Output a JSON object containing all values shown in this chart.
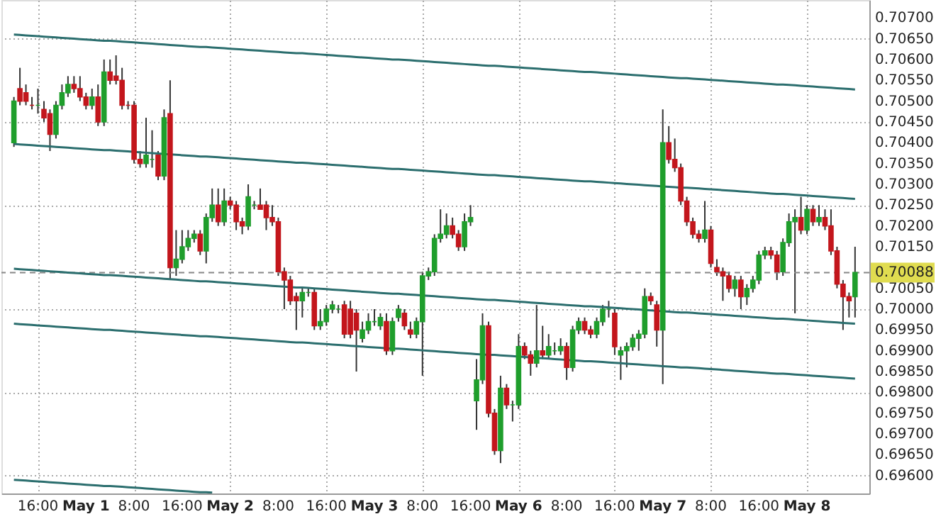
{
  "chart_data": {
    "type": "candlestick",
    "categories": [
      null,
      null,
      null,
      null,
      "16:00",
      null,
      null,
      null,
      null,
      null,
      null,
      null,
      "May 1",
      null,
      null,
      null,
      null,
      null,
      null,
      null,
      "8:00",
      null,
      null,
      null,
      null,
      null,
      null,
      null,
      "16:00",
      null,
      null,
      null,
      null,
      null,
      null,
      null,
      "May 2",
      null,
      null,
      null,
      null,
      null,
      null,
      null,
      "8:00",
      null,
      null,
      null,
      null,
      null,
      null,
      null,
      "16:00",
      null,
      null,
      null,
      null,
      null,
      null,
      null,
      "May 3",
      null,
      null,
      null,
      null,
      null,
      null,
      null,
      "8:00",
      null,
      null,
      null,
      null,
      null,
      null,
      null,
      "16:00",
      null,
      null,
      null,
      null,
      null,
      null,
      null,
      "May 6",
      null,
      null,
      null,
      null,
      null,
      null,
      null,
      "8:00",
      null,
      null,
      null,
      null,
      null,
      null,
      null,
      "16:00",
      null,
      null,
      null,
      null,
      null,
      null,
      null,
      "May 7",
      null,
      null,
      null,
      null,
      null,
      null,
      null,
      "8:00",
      null,
      null,
      null,
      null,
      null,
      null,
      null,
      "16:00",
      null,
      null,
      null,
      null,
      null,
      null,
      null,
      "May 8",
      null,
      null,
      null,
      null,
      null,
      null,
      null,
      null
    ],
    "ohlc": [
      [
        0.704,
        0.7051,
        0.7039,
        0.705
      ],
      [
        0.7053,
        0.7058,
        0.7049,
        0.705
      ],
      [
        0.7052,
        0.7054,
        0.7049,
        0.705
      ],
      [
        0.7049,
        0.7051,
        0.7048,
        0.7049
      ],
      [
        0.7049,
        0.7053,
        0.7047,
        0.7049
      ],
      [
        0.7048,
        0.705,
        0.7045,
        0.7046
      ],
      [
        0.7047,
        0.7048,
        0.7038,
        0.7042
      ],
      [
        0.7042,
        0.705,
        0.7041,
        0.7049
      ],
      [
        0.7049,
        0.7054,
        0.7048,
        0.7052
      ],
      [
        0.7052,
        0.7056,
        0.7051,
        0.7054
      ],
      [
        0.7054,
        0.7056,
        0.7052,
        0.7053
      ],
      [
        0.7053,
        0.7056,
        0.705,
        0.7051
      ],
      [
        0.7051,
        0.7052,
        0.7048,
        0.7049
      ],
      [
        0.7049,
        0.7053,
        0.7048,
        0.7051
      ],
      [
        0.7051,
        0.7054,
        0.7044,
        0.7045
      ],
      [
        0.7045,
        0.706,
        0.7044,
        0.7057
      ],
      [
        0.7057,
        0.706,
        0.7054,
        0.7055
      ],
      [
        0.7056,
        0.7061,
        0.7054,
        0.7055
      ],
      [
        0.7055,
        0.7058,
        0.7048,
        0.7049
      ],
      [
        0.7049,
        0.705,
        0.7048,
        0.7049
      ],
      [
        0.7049,
        0.705,
        0.7035,
        0.7036
      ],
      [
        0.7036,
        0.7038,
        0.7034,
        0.7035
      ],
      [
        0.7035,
        0.7046,
        0.7034,
        0.7037
      ],
      [
        0.7036,
        0.7043,
        0.7034,
        0.7036
      ],
      [
        0.7037,
        0.7038,
        0.7031,
        0.7032
      ],
      [
        0.7032,
        0.7048,
        0.7031,
        0.7046
      ],
      [
        0.7047,
        0.7055,
        0.7007,
        0.701
      ],
      [
        0.701,
        0.7019,
        0.7008,
        0.7012
      ],
      [
        0.7012,
        0.7019,
        0.7011,
        0.7015
      ],
      [
        0.7015,
        0.7019,
        0.7014,
        0.7017
      ],
      [
        0.7017,
        0.7019,
        0.7016,
        0.7018
      ],
      [
        0.7018,
        0.7019,
        0.7013,
        0.7014
      ],
      [
        0.7014,
        0.7023,
        0.7011,
        0.7022
      ],
      [
        0.7022,
        0.7029,
        0.7021,
        0.7025
      ],
      [
        0.7025,
        0.7029,
        0.702,
        0.7021
      ],
      [
        0.7021,
        0.7029,
        0.702,
        0.7026
      ],
      [
        0.7026,
        0.7027,
        0.7024,
        0.7025
      ],
      [
        0.7025,
        0.7026,
        0.7019,
        0.7021
      ],
      [
        0.7021,
        0.7022,
        0.7018,
        0.702
      ],
      [
        0.702,
        0.703,
        0.7019,
        0.7027
      ],
      [
        0.7025,
        0.7026,
        0.7024,
        0.7025
      ],
      [
        0.7025,
        0.7029,
        0.7024,
        0.7024
      ],
      [
        0.7025,
        0.7026,
        0.7019,
        0.7022
      ],
      [
        0.7022,
        0.7025,
        0.702,
        0.7021
      ],
      [
        0.7021,
        0.7022,
        0.7008,
        0.7009
      ],
      [
        0.7009,
        0.701,
        0.7,
        0.7007
      ],
      [
        0.7007,
        0.7008,
        0.7001,
        0.7002
      ],
      [
        0.7003,
        0.7004,
        0.6995,
        0.7002
      ],
      [
        0.7002,
        0.7005,
        0.6998,
        0.7004
      ],
      [
        0.7004,
        0.7005,
        0.7003,
        0.7004
      ],
      [
        0.7004,
        0.7005,
        0.6995,
        0.6996
      ],
      [
        0.6996,
        0.7,
        0.6995,
        0.6997
      ],
      [
        0.6997,
        0.7001,
        0.6996,
        0.7
      ],
      [
        0.7,
        0.7002,
        0.6999,
        0.7001
      ],
      [
        0.7,
        0.7001,
        0.6999,
        0.7
      ],
      [
        0.7001,
        0.7002,
        0.6993,
        0.6994
      ],
      [
        0.7,
        0.7002,
        0.6993,
        0.6994
      ],
      [
        0.6999,
        0.7,
        0.6985,
        0.6995
      ],
      [
        0.6993,
        0.6997,
        0.6992,
        0.6995
      ],
      [
        0.6995,
        0.6999,
        0.6994,
        0.6997
      ],
      [
        0.6997,
        0.7,
        0.6996,
        0.6997
      ],
      [
        0.6996,
        0.6999,
        0.6995,
        0.6998
      ],
      [
        0.6997,
        0.6999,
        0.6989,
        0.699
      ],
      [
        0.699,
        0.6998,
        0.6989,
        0.6997
      ],
      [
        0.6998,
        0.7001,
        0.6997,
        0.7
      ],
      [
        0.6999,
        0.7,
        0.6995,
        0.6996
      ],
      [
        0.6995,
        0.6997,
        0.6993,
        0.6994
      ],
      [
        0.6994,
        0.6998,
        0.6993,
        0.6997
      ],
      [
        0.6997,
        0.7009,
        0.6984,
        0.7008
      ],
      [
        0.7008,
        0.701,
        0.7007,
        0.7009
      ],
      [
        0.7009,
        0.7018,
        0.7008,
        0.7017
      ],
      [
        0.7017,
        0.7024,
        0.7016,
        0.7018
      ],
      [
        0.7018,
        0.7023,
        0.7017,
        0.702
      ],
      [
        0.702,
        0.7022,
        0.7017,
        0.7018
      ],
      [
        0.7018,
        0.7019,
        0.7014,
        0.7015
      ],
      [
        0.7015,
        0.7023,
        0.7014,
        0.7021
      ],
      [
        0.7021,
        0.7025,
        0.702,
        0.7022
      ],
      [
        0.6978,
        0.6988,
        0.6971,
        0.6983
      ],
      [
        0.6983,
        0.6999,
        0.6982,
        0.6996
      ],
      [
        0.6996,
        0.6997,
        0.6974,
        0.6975
      ],
      [
        0.6975,
        0.6976,
        0.6965,
        0.6966
      ],
      [
        0.6966,
        0.6984,
        0.6963,
        0.6981
      ],
      [
        0.6981,
        0.6982,
        0.6976,
        0.6977
      ],
      [
        0.6977,
        0.6978,
        0.6973,
        0.6977
      ],
      [
        0.6977,
        0.6994,
        0.6976,
        0.6991
      ],
      [
        0.6991,
        0.6992,
        0.6988,
        0.6989
      ],
      [
        0.6989,
        0.699,
        0.6984,
        0.6987
      ],
      [
        0.6987,
        0.7001,
        0.6986,
        0.699
      ],
      [
        0.699,
        0.6996,
        0.6988,
        0.6989
      ],
      [
        0.6989,
        0.6994,
        0.6988,
        0.6991
      ],
      [
        0.699,
        0.6992,
        0.6989,
        0.699
      ],
      [
        0.699,
        0.6993,
        0.6989,
        0.6991
      ],
      [
        0.6991,
        0.6992,
        0.6983,
        0.6986
      ],
      [
        0.6986,
        0.6996,
        0.6985,
        0.6995
      ],
      [
        0.6995,
        0.6998,
        0.6994,
        0.6997
      ],
      [
        0.6997,
        0.6998,
        0.6994,
        0.6995
      ],
      [
        0.6995,
        0.6996,
        0.6993,
        0.6994
      ],
      [
        0.6994,
        0.6998,
        0.6993,
        0.6997
      ],
      [
        0.6997,
        0.7001,
        0.6996,
        0.7
      ],
      [
        0.7,
        0.7002,
        0.6998,
        0.7
      ],
      [
        0.6999,
        0.7,
        0.6989,
        0.6991
      ],
      [
        0.6989,
        0.6991,
        0.6983,
        0.699
      ],
      [
        0.699,
        0.6992,
        0.6986,
        0.6991
      ],
      [
        0.6991,
        0.6994,
        0.699,
        0.6993
      ],
      [
        0.6993,
        0.6995,
        0.699,
        0.6994
      ],
      [
        0.6994,
        0.7005,
        0.6993,
        0.7003
      ],
      [
        0.7003,
        0.7004,
        0.7001,
        0.7002
      ],
      [
        0.7001,
        0.7002,
        0.6991,
        0.6995
      ],
      [
        0.6995,
        0.7048,
        0.6982,
        0.704
      ],
      [
        0.704,
        0.7044,
        0.7035,
        0.7036
      ],
      [
        0.7036,
        0.7041,
        0.7033,
        0.7034
      ],
      [
        0.7034,
        0.7035,
        0.7025,
        0.7026
      ],
      [
        0.7026,
        0.7027,
        0.702,
        0.7021
      ],
      [
        0.7021,
        0.7022,
        0.7017,
        0.7018
      ],
      [
        0.7018,
        0.7019,
        0.7016,
        0.7017
      ],
      [
        0.7017,
        0.7026,
        0.7016,
        0.7019
      ],
      [
        0.7019,
        0.702,
        0.701,
        0.7011
      ],
      [
        0.701,
        0.7012,
        0.7008,
        0.7009
      ],
      [
        0.7009,
        0.701,
        0.7002,
        0.7008
      ],
      [
        0.7008,
        0.7009,
        0.7004,
        0.7005
      ],
      [
        0.7005,
        0.7008,
        0.7003,
        0.7007
      ],
      [
        0.7007,
        0.7008,
        0.7,
        0.7003
      ],
      [
        0.7003,
        0.7006,
        0.7001,
        0.7005
      ],
      [
        0.7005,
        0.7008,
        0.7004,
        0.7007
      ],
      [
        0.7007,
        0.7014,
        0.7006,
        0.7013
      ],
      [
        0.7013,
        0.7015,
        0.7012,
        0.7014
      ],
      [
        0.7014,
        0.7015,
        0.7012,
        0.7013
      ],
      [
        0.7013,
        0.7014,
        0.7007,
        0.7009
      ],
      [
        0.7009,
        0.7017,
        0.7008,
        0.7016
      ],
      [
        0.7016,
        0.7023,
        0.7015,
        0.7021
      ],
      [
        0.7021,
        0.7024,
        0.6999,
        0.7022
      ],
      [
        0.7022,
        0.7027,
        0.7018,
        0.7019
      ],
      [
        0.7019,
        0.7025,
        0.7018,
        0.7024
      ],
      [
        0.7024,
        0.7025,
        0.702,
        0.7021
      ],
      [
        0.7021,
        0.7025,
        0.702,
        0.7022
      ],
      [
        0.7022,
        0.7024,
        0.7019,
        0.702
      ],
      [
        0.702,
        0.7024,
        0.7013,
        0.7014
      ],
      [
        0.7014,
        0.7015,
        0.7005,
        0.7006
      ],
      [
        0.7006,
        0.7007,
        0.6995,
        0.7003
      ],
      [
        0.7003,
        0.7004,
        0.6998,
        0.7002
      ],
      [
        0.7003,
        0.7015,
        0.6998,
        0.70088
      ]
    ],
    "colors": [
      "#1f9e2c",
      "#c3161c",
      "#c3161c",
      "#c3161c",
      "#1f9e2c",
      "#c3161c",
      "#c3161c",
      "#1f9e2c",
      "#1f9e2c",
      "#1f9e2c",
      "#c3161c",
      "#c3161c",
      "#c3161c",
      "#1f9e2c",
      "#c3161c",
      "#1f9e2c",
      "#c3161c",
      "#c3161c",
      "#c3161c",
      "#c3161c",
      "#c3161c",
      "#c3161c",
      "#1f9e2c",
      "#1f9e2c",
      "#c3161c",
      "#1f9e2c",
      "#c3161c",
      "#1f9e2c",
      "#1f9e2c",
      "#1f9e2c",
      "#1f9e2c",
      "#c3161c",
      "#1f9e2c",
      "#1f9e2c",
      "#c3161c",
      "#1f9e2c",
      "#c3161c",
      "#c3161c",
      "#c3161c",
      "#1f9e2c",
      "#1f9e2c",
      "#c3161c",
      "#c3161c",
      "#c3161c",
      "#c3161c",
      "#c3161c",
      "#c3161c",
      "#c3161c",
      "#1f9e2c",
      "#1f9e2c",
      "#c3161c",
      "#1f9e2c",
      "#1f9e2c",
      "#1f9e2c",
      "#1f9e2c",
      "#c3161c",
      "#c3161c",
      "#c3161c",
      "#1f9e2c",
      "#1f9e2c",
      "#1f9e2c",
      "#1f9e2c",
      "#c3161c",
      "#1f9e2c",
      "#1f9e2c",
      "#c3161c",
      "#c3161c",
      "#1f9e2c",
      "#1f9e2c",
      "#1f9e2c",
      "#1f9e2c",
      "#1f9e2c",
      "#1f9e2c",
      "#c3161c",
      "#c3161c",
      "#1f9e2c",
      "#1f9e2c",
      "#1f9e2c",
      "#1f9e2c",
      "#c3161c",
      "#c3161c",
      "#1f9e2c",
      "#c3161c",
      "#1f9e2c",
      "#1f9e2c",
      "#c3161c",
      "#c3161c",
      "#1f9e2c",
      "#c3161c",
      "#1f9e2c",
      "#1f9e2c",
      "#1f9e2c",
      "#c3161c",
      "#1f9e2c",
      "#1f9e2c",
      "#c3161c",
      "#c3161c",
      "#1f9e2c",
      "#1f9e2c",
      "#1f9e2c",
      "#c3161c",
      "#1f9e2c",
      "#1f9e2c",
      "#1f9e2c",
      "#1f9e2c",
      "#1f9e2c",
      "#c3161c",
      "#c3161c",
      "#1f9e2c",
      "#c3161c",
      "#c3161c",
      "#c3161c",
      "#c3161c",
      "#c3161c",
      "#c3161c",
      "#1f9e2c",
      "#c3161c",
      "#c3161c",
      "#c3161c",
      "#c3161c",
      "#1f9e2c",
      "#c3161c",
      "#1f9e2c",
      "#1f9e2c",
      "#1f9e2c",
      "#1f9e2c",
      "#c3161c",
      "#c3161c",
      "#1f9e2c",
      "#1f9e2c",
      "#1f9e2c",
      "#c3161c",
      "#1f9e2c",
      "#c3161c",
      "#1f9e2c",
      "#c3161c",
      "#c3161c",
      "#c3161c",
      "#c3161c",
      "#c3161c",
      "#1f9e2c"
    ],
    "series": [
      {
        "type": "line",
        "color": "#2b6e6e",
        "values": [
          0.7066,
          0.70659,
          0.70658,
          0.70657,
          0.70656,
          0.70655,
          0.70654,
          0.70653,
          0.70652,
          0.70651,
          0.7065,
          0.70649,
          0.70648,
          0.70647,
          0.70646,
          0.70645,
          0.70645,
          0.70644,
          0.70643,
          0.70642,
          0.70641,
          0.7064,
          0.70639,
          0.70638,
          0.70637,
          0.70636,
          0.70635,
          0.70634,
          0.70633,
          0.70632,
          0.70631,
          0.7063,
          0.7063,
          0.70629,
          0.70628,
          0.70627,
          0.70626,
          0.70625,
          0.70624,
          0.70623,
          0.70622,
          0.70621,
          0.7062,
          0.70619,
          0.70618,
          0.70617,
          0.70616,
          0.70615,
          0.70615,
          0.70614,
          0.70613,
          0.70612,
          0.70611,
          0.7061,
          0.70609,
          0.70608,
          0.70607,
          0.70606,
          0.70605,
          0.70604,
          0.70603,
          0.70602,
          0.70601,
          0.706,
          0.706,
          0.70599,
          0.70598,
          0.70597,
          0.70596,
          0.70595,
          0.70594,
          0.70593,
          0.70592,
          0.70591,
          0.7059,
          0.70589,
          0.70588,
          0.70587,
          0.70586,
          0.70585,
          0.70585,
          0.70584,
          0.70583,
          0.70582,
          0.70581,
          0.7058,
          0.70579,
          0.70578,
          0.70577,
          0.70576,
          0.70575,
          0.70574,
          0.70573,
          0.70572,
          0.70571,
          0.7057,
          0.7057,
          0.70569,
          0.70568,
          0.70567,
          0.70566,
          0.70565,
          0.70564,
          0.70563,
          0.70562,
          0.70561,
          0.7056,
          0.70559,
          0.70558,
          0.70557,
          0.70556,
          0.70555,
          0.70555,
          0.70554,
          0.70553,
          0.70552,
          0.70551,
          0.7055,
          0.70549,
          0.70548,
          0.70547,
          0.70546,
          0.70545,
          0.70544,
          0.70543,
          0.70542,
          0.70541,
          0.7054,
          0.7054,
          0.70539,
          0.70538,
          0.70537,
          0.70536,
          0.70535,
          0.70534,
          0.70533,
          0.70532,
          0.70531,
          0.7053,
          0.70529,
          0.70528
        ]
      },
      {
        "type": "line",
        "color": "#2b6e6e",
        "values": [
          0.70397,
          0.70396,
          0.70395,
          0.70394,
          0.70393,
          0.70392,
          0.70391,
          0.7039,
          0.70389,
          0.70388,
          0.70387,
          0.70386,
          0.70385,
          0.70384,
          0.70383,
          0.70382,
          0.70382,
          0.70381,
          0.7038,
          0.70379,
          0.70378,
          0.70377,
          0.70376,
          0.70375,
          0.70374,
          0.70373,
          0.70372,
          0.70371,
          0.7037,
          0.70369,
          0.70368,
          0.70367,
          0.70367,
          0.70366,
          0.70365,
          0.70364,
          0.70363,
          0.70362,
          0.70361,
          0.7036,
          0.70359,
          0.70358,
          0.70357,
          0.70356,
          0.70355,
          0.70354,
          0.70353,
          0.70352,
          0.70352,
          0.70351,
          0.7035,
          0.70349,
          0.70348,
          0.70347,
          0.70346,
          0.70345,
          0.70344,
          0.70343,
          0.70342,
          0.70341,
          0.7034,
          0.70339,
          0.70338,
          0.70337,
          0.70337,
          0.70336,
          0.70335,
          0.70334,
          0.70333,
          0.70332,
          0.70331,
          0.7033,
          0.70329,
          0.70328,
          0.70327,
          0.70326,
          0.70325,
          0.70324,
          0.70323,
          0.70322,
          0.70322,
          0.70321,
          0.7032,
          0.70319,
          0.70318,
          0.70317,
          0.70316,
          0.70315,
          0.70314,
          0.70313,
          0.70312,
          0.70311,
          0.7031,
          0.70309,
          0.70308,
          0.70307,
          0.70307,
          0.70306,
          0.70305,
          0.70304,
          0.70303,
          0.70302,
          0.70301,
          0.703,
          0.70299,
          0.70298,
          0.70297,
          0.70296,
          0.70295,
          0.70294,
          0.70293,
          0.70292,
          0.70292,
          0.70291,
          0.7029,
          0.70289,
          0.70288,
          0.70287,
          0.70286,
          0.70285,
          0.70284,
          0.70283,
          0.70282,
          0.70281,
          0.7028,
          0.70279,
          0.70278,
          0.70277,
          0.70277,
          0.70276,
          0.70275,
          0.70274,
          0.70273,
          0.70272,
          0.70271,
          0.7027,
          0.70269,
          0.70268,
          0.70267,
          0.70266,
          0.70265
        ]
      },
      {
        "type": "line",
        "color": "#2b6e6e",
        "values": [
          0.70097,
          0.70096,
          0.70095,
          0.70094,
          0.70093,
          0.70092,
          0.70091,
          0.7009,
          0.70089,
          0.70088,
          0.70087,
          0.70086,
          0.70085,
          0.70084,
          0.70083,
          0.70082,
          0.70082,
          0.70081,
          0.7008,
          0.70079,
          0.70078,
          0.70077,
          0.70076,
          0.70075,
          0.70074,
          0.70073,
          0.70072,
          0.70071,
          0.7007,
          0.70069,
          0.70068,
          0.70067,
          0.70067,
          0.70066,
          0.70065,
          0.70064,
          0.70063,
          0.70062,
          0.70061,
          0.7006,
          0.70059,
          0.70058,
          0.70057,
          0.70056,
          0.70055,
          0.70054,
          0.70053,
          0.70052,
          0.70052,
          0.70051,
          0.7005,
          0.70049,
          0.70048,
          0.70047,
          0.70046,
          0.70045,
          0.70044,
          0.70043,
          0.70042,
          0.70041,
          0.7004,
          0.70039,
          0.70038,
          0.70037,
          0.70037,
          0.70036,
          0.70035,
          0.70034,
          0.70033,
          0.70032,
          0.70031,
          0.7003,
          0.70029,
          0.70028,
          0.70027,
          0.70026,
          0.70025,
          0.70024,
          0.70023,
          0.70022,
          0.70022,
          0.70021,
          0.7002,
          0.70019,
          0.70018,
          0.70017,
          0.70016,
          0.70015,
          0.70014,
          0.70013,
          0.70012,
          0.70011,
          0.7001,
          0.70009,
          0.70008,
          0.70007,
          0.70007,
          0.70006,
          0.70005,
          0.70004,
          0.70003,
          0.70002,
          0.70001,
          0.7,
          0.69999,
          0.69998,
          0.69997,
          0.69996,
          0.69995,
          0.69994,
          0.69993,
          0.69992,
          0.69992,
          0.69991,
          0.6999,
          0.69989,
          0.69988,
          0.69987,
          0.69986,
          0.69985,
          0.69984,
          0.69983,
          0.69982,
          0.69981,
          0.6998,
          0.69979,
          0.69978,
          0.69977,
          0.69977,
          0.69976,
          0.69975,
          0.69974,
          0.69973,
          0.69972,
          0.69971,
          0.6997,
          0.69969,
          0.69968,
          0.69967,
          0.69966,
          0.69965
        ]
      },
      {
        "type": "line",
        "color": "#2b6e6e",
        "values": [
          0.69965,
          0.69964,
          0.69963,
          0.69962,
          0.69961,
          0.6996,
          0.69959,
          0.69958,
          0.69957,
          0.69956,
          0.69955,
          0.69954,
          0.69953,
          0.69952,
          0.69951,
          0.6995,
          0.6995,
          0.69949,
          0.69948,
          0.69947,
          0.69946,
          0.69945,
          0.69944,
          0.69943,
          0.69942,
          0.69941,
          0.6994,
          0.69939,
          0.69938,
          0.69937,
          0.69936,
          0.69935,
          0.69935,
          0.69934,
          0.69933,
          0.69932,
          0.69931,
          0.6993,
          0.69929,
          0.69928,
          0.69927,
          0.69926,
          0.69925,
          0.69924,
          0.69923,
          0.69922,
          0.69921,
          0.6992,
          0.6992,
          0.69919,
          0.69918,
          0.69917,
          0.69916,
          0.69915,
          0.69914,
          0.69913,
          0.69912,
          0.69911,
          0.6991,
          0.69909,
          0.69908,
          0.69907,
          0.69906,
          0.69905,
          0.69905,
          0.69904,
          0.69903,
          0.69902,
          0.69901,
          0.699,
          0.69899,
          0.69898,
          0.69897,
          0.69896,
          0.69895,
          0.69894,
          0.69893,
          0.69892,
          0.69891,
          0.6989,
          0.6989,
          0.69889,
          0.69888,
          0.69887,
          0.69886,
          0.69885,
          0.69884,
          0.69883,
          0.69882,
          0.69881,
          0.6988,
          0.69879,
          0.69878,
          0.69877,
          0.69876,
          0.69875,
          0.69875,
          0.69874,
          0.69873,
          0.69872,
          0.69871,
          0.6987,
          0.69869,
          0.69868,
          0.69867,
          0.69866,
          0.69865,
          0.69864,
          0.69863,
          0.69862,
          0.69861,
          0.6986,
          0.6986,
          0.69859,
          0.69858,
          0.69857,
          0.69856,
          0.69855,
          0.69854,
          0.69853,
          0.69852,
          0.69851,
          0.6985,
          0.69849,
          0.69848,
          0.69847,
          0.69846,
          0.69845,
          0.69845,
          0.69844,
          0.69843,
          0.69842,
          0.69841,
          0.6984,
          0.69839,
          0.69838,
          0.69837,
          0.69836,
          0.69835,
          0.69834,
          0.69833
        ]
      },
      {
        "type": "line",
        "color": "#2b6e6e",
        "values": [
          0.6959,
          0.69589,
          0.69588,
          0.69587,
          0.69586,
          0.69585,
          0.69584,
          0.69583,
          0.69582,
          0.69581,
          0.6958,
          0.69579,
          0.69578,
          0.69577,
          0.69576,
          0.69575,
          0.69575,
          0.69574,
          0.69573,
          0.69572,
          0.69571,
          0.6957,
          0.69569,
          0.69568,
          0.69567,
          0.69566,
          0.69565,
          0.69564,
          0.69563,
          0.69562,
          0.69561,
          0.6956,
          0.6956,
          0.69559,
          null,
          null,
          null,
          null,
          null,
          null,
          null,
          null,
          null,
          null,
          null,
          null,
          null,
          null,
          null,
          null,
          null,
          null,
          null,
          null,
          null,
          null,
          null,
          null,
          null,
          null,
          null,
          null,
          null,
          null,
          null,
          null,
          null,
          null,
          null,
          null,
          null,
          null,
          null,
          null,
          null,
          null,
          null,
          null,
          null,
          null,
          null,
          null,
          null,
          null,
          null,
          null,
          null,
          null,
          null,
          null,
          null,
          null,
          null,
          null,
          null,
          null,
          null,
          null,
          null,
          null,
          null,
          null,
          null,
          null,
          null,
          null,
          null,
          null,
          null,
          null,
          null,
          null,
          null,
          null,
          null,
          null,
          null,
          null,
          null,
          null,
          null,
          null,
          null,
          null,
          null,
          null,
          null,
          null,
          null,
          null,
          null,
          null,
          null,
          null,
          null,
          null,
          null,
          null,
          null,
          null,
          null
        ]
      }
    ],
    "ylim": [
      0.69557,
      0.70743
    ],
    "yticks": [
      {
        "value": 0.696,
        "label": "0.69600"
      },
      {
        "value": 0.6965,
        "label": "0.69650"
      },
      {
        "value": 0.697,
        "label": "0.69700"
      },
      {
        "value": 0.6975,
        "label": "0.69750"
      },
      {
        "value": 0.698,
        "label": "0.69800"
      },
      {
        "value": 0.6985,
        "label": "0.69850"
      },
      {
        "value": 0.699,
        "label": "0.69900"
      },
      {
        "value": 0.6995,
        "label": "0.69950"
      },
      {
        "value": 0.7,
        "label": "0.70000"
      },
      {
        "value": 0.7005,
        "label": "0.70050"
      },
      {
        "value": 0.7015,
        "label": "0.70150"
      },
      {
        "value": 0.702,
        "label": "0.70200"
      },
      {
        "value": 0.7025,
        "label": "0.70250"
      },
      {
        "value": 0.703,
        "label": "0.70300"
      },
      {
        "value": 0.7035,
        "label": "0.70350"
      },
      {
        "value": 0.704,
        "label": "0.70400"
      },
      {
        "value": 0.7045,
        "label": "0.70450"
      },
      {
        "value": 0.705,
        "label": "0.70500"
      },
      {
        "value": 0.7055,
        "label": "0.70550"
      },
      {
        "value": 0.706,
        "label": "0.70600"
      },
      {
        "value": 0.7065,
        "label": "0.70650"
      },
      {
        "value": 0.707,
        "label": "0.70700"
      }
    ],
    "grid": true,
    "ref_lines": [
      {
        "axis": "y",
        "value": 0.70088,
        "label": "0.70088",
        "color": "#888888",
        "line_style": "dashed"
      }
    ]
  }
}
